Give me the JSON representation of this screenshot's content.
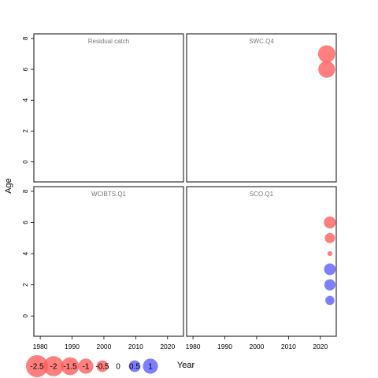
{
  "chart_data": {
    "type": "scatter",
    "encoding": "bubble residual plot; circle area proportional to residual magnitude; red negative, blue positive",
    "colors": {
      "negative": "#ff5a5a",
      "positive": "#5a5aff",
      "panel_border": "#333333",
      "title_text": "#777777"
    },
    "ylabel": "Age",
    "xlabel": "Year",
    "xlim": [
      1978,
      2025
    ],
    "ylim": [
      -1.3,
      8.3
    ],
    "x_ticks": [
      1980,
      1990,
      2000,
      2010,
      2020
    ],
    "y_ticks": [
      0,
      2,
      4,
      6,
      8
    ],
    "panels": [
      {
        "title": "Residual catch",
        "points": []
      },
      {
        "title": "SWC.Q4",
        "points": [
          {
            "x": 2022,
            "y": 7,
            "residual": -1.4
          },
          {
            "x": 2022,
            "y": 6,
            "residual": -1.3
          }
        ]
      },
      {
        "title": "WCIBTS.Q1",
        "points": []
      },
      {
        "title": "SCO.Q1",
        "points": [
          {
            "x": 2023,
            "y": 6,
            "residual": -0.55
          },
          {
            "x": 2023,
            "y": 5,
            "residual": -0.35
          },
          {
            "x": 2023,
            "y": 4,
            "residual": -0.02
          },
          {
            "x": 2023,
            "y": 3,
            "residual": 0.5
          },
          {
            "x": 2023,
            "y": 2,
            "residual": 0.45
          },
          {
            "x": 2023,
            "y": 1,
            "residual": 0.25
          }
        ]
      }
    ],
    "legend": {
      "position": "bottom-left",
      "entries": [
        {
          "label": "-2.5",
          "value": -2.5
        },
        {
          "label": "-2",
          "value": -2
        },
        {
          "label": "-1.5",
          "value": -1.5
        },
        {
          "label": "-1",
          "value": -1
        },
        {
          "label": "-0.5",
          "value": -0.5
        },
        {
          "label": "0",
          "value": 0
        },
        {
          "label": "0.5",
          "value": 0.5
        },
        {
          "label": "1",
          "value": 1
        }
      ]
    }
  }
}
